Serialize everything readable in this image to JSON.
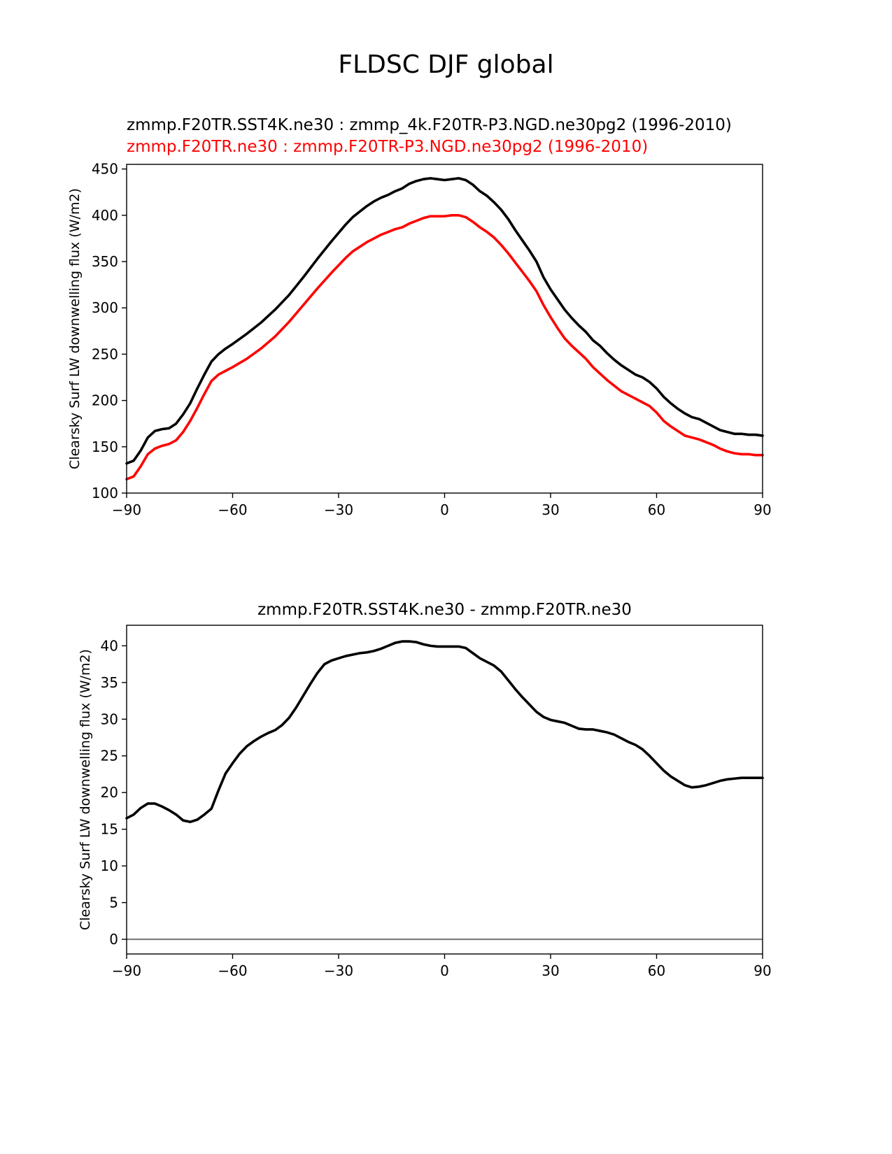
{
  "figure": {
    "title": "FLDSC DJF global"
  },
  "chart_data": [
    {
      "type": "line",
      "title_lines": [
        "zmmp.F20TR.SST4K.ne30 : zmmp_4k.F20TR-P3.NGD.ne30pg2 (1996-2010)",
        "zmmp.F20TR.ne30 : zmmp.F20TR-P3.NGD.ne30pg2 (1996-2010)"
      ],
      "title_colors": [
        "#000000",
        "#ff0000"
      ],
      "xlabel": "",
      "ylabel": "Clearsky Surf LW downwelling flux (W/m2)",
      "xlim": [
        -90,
        90
      ],
      "ylim": [
        100,
        455
      ],
      "xticks": [
        -90,
        -60,
        -30,
        0,
        30,
        60,
        90
      ],
      "xtick_labels": [
        "−90",
        "−60",
        "−30",
        "0",
        "30",
        "60",
        "90"
      ],
      "yticks": [
        100,
        150,
        200,
        250,
        300,
        350,
        400,
        450
      ],
      "ytick_labels": [
        "100",
        "150",
        "200",
        "250",
        "300",
        "350",
        "400",
        "450"
      ],
      "series": [
        {
          "name": "zmmp.F20TR.SST4K.ne30",
          "color": "#000000",
          "points": [
            [
              -90,
              132
            ],
            [
              -88,
              135
            ],
            [
              -86,
              146
            ],
            [
              -84,
              160
            ],
            [
              -82,
              167
            ],
            [
              -80,
              169
            ],
            [
              -78,
              170
            ],
            [
              -76,
              175
            ],
            [
              -74,
              185
            ],
            [
              -72,
              197
            ],
            [
              -70,
              213
            ],
            [
              -68,
              228
            ],
            [
              -66,
              242
            ],
            [
              -64,
              250
            ],
            [
              -62,
              256
            ],
            [
              -60,
              261
            ],
            [
              -56,
              272
            ],
            [
              -52,
              284
            ],
            [
              -48,
              298
            ],
            [
              -44,
              314
            ],
            [
              -40,
              333
            ],
            [
              -36,
              353
            ],
            [
              -32,
              372
            ],
            [
              -28,
              390
            ],
            [
              -26,
              398
            ],
            [
              -24,
              404
            ],
            [
              -22,
              410
            ],
            [
              -20,
              415
            ],
            [
              -18,
              419
            ],
            [
              -16,
              422
            ],
            [
              -14,
              426
            ],
            [
              -12,
              429
            ],
            [
              -10,
              434
            ],
            [
              -8,
              437
            ],
            [
              -6,
              439
            ],
            [
              -4,
              440
            ],
            [
              -2,
              439
            ],
            [
              0,
              438
            ],
            [
              2,
              439
            ],
            [
              4,
              440
            ],
            [
              6,
              438
            ],
            [
              8,
              433
            ],
            [
              10,
              426
            ],
            [
              12,
              421
            ],
            [
              14,
              414
            ],
            [
              16,
              406
            ],
            [
              18,
              396
            ],
            [
              20,
              384
            ],
            [
              22,
              373
            ],
            [
              24,
              362
            ],
            [
              26,
              350
            ],
            [
              28,
              333
            ],
            [
              30,
              320
            ],
            [
              32,
              309
            ],
            [
              34,
              298
            ],
            [
              36,
              289
            ],
            [
              38,
              281
            ],
            [
              40,
              274
            ],
            [
              42,
              265
            ],
            [
              44,
              259
            ],
            [
              46,
              251
            ],
            [
              48,
              244
            ],
            [
              50,
              238
            ],
            [
              52,
              233
            ],
            [
              54,
              228
            ],
            [
              56,
              225
            ],
            [
              58,
              220
            ],
            [
              60,
              213
            ],
            [
              62,
              204
            ],
            [
              64,
              197
            ],
            [
              66,
              191
            ],
            [
              68,
              186
            ],
            [
              70,
              182
            ],
            [
              72,
              180
            ],
            [
              74,
              176
            ],
            [
              76,
              172
            ],
            [
              78,
              168
            ],
            [
              80,
              166
            ],
            [
              82,
              164
            ],
            [
              84,
              164
            ],
            [
              86,
              163
            ],
            [
              88,
              163
            ],
            [
              90,
              162
            ]
          ]
        },
        {
          "name": "zmmp.F20TR.ne30",
          "color": "#ff0000",
          "points": [
            [
              -90,
              115
            ],
            [
              -88,
              118
            ],
            [
              -86,
              129
            ],
            [
              -84,
              142
            ],
            [
              -82,
              148
            ],
            [
              -80,
              151
            ],
            [
              -78,
              153
            ],
            [
              -76,
              157
            ],
            [
              -74,
              166
            ],
            [
              -72,
              178
            ],
            [
              -70,
              192
            ],
            [
              -68,
              207
            ],
            [
              -66,
              221
            ],
            [
              -64,
              228
            ],
            [
              -62,
              232
            ],
            [
              -60,
              236
            ],
            [
              -56,
              245
            ],
            [
              -52,
              256
            ],
            [
              -48,
              269
            ],
            [
              -44,
              285
            ],
            [
              -40,
              303
            ],
            [
              -36,
              321
            ],
            [
              -32,
              338
            ],
            [
              -28,
              354
            ],
            [
              -26,
              361
            ],
            [
              -24,
              366
            ],
            [
              -22,
              371
            ],
            [
              -20,
              375
            ],
            [
              -18,
              379
            ],
            [
              -16,
              382
            ],
            [
              -14,
              385
            ],
            [
              -12,
              387
            ],
            [
              -10,
              391
            ],
            [
              -8,
              394
            ],
            [
              -6,
              397
            ],
            [
              -4,
              399
            ],
            [
              -2,
              399
            ],
            [
              0,
              399
            ],
            [
              2,
              400
            ],
            [
              4,
              400
            ],
            [
              6,
              398
            ],
            [
              8,
              393
            ],
            [
              10,
              387
            ],
            [
              12,
              382
            ],
            [
              14,
              376
            ],
            [
              16,
              368
            ],
            [
              18,
              359
            ],
            [
              20,
              349
            ],
            [
              22,
              339
            ],
            [
              24,
              329
            ],
            [
              26,
              318
            ],
            [
              28,
              303
            ],
            [
              30,
              290
            ],
            [
              32,
              278
            ],
            [
              34,
              267
            ],
            [
              36,
              259
            ],
            [
              38,
              252
            ],
            [
              40,
              245
            ],
            [
              42,
              236
            ],
            [
              44,
              229
            ],
            [
              46,
              222
            ],
            [
              48,
              216
            ],
            [
              50,
              210
            ],
            [
              52,
              206
            ],
            [
              54,
              202
            ],
            [
              56,
              198
            ],
            [
              58,
              194
            ],
            [
              60,
              187
            ],
            [
              62,
              178
            ],
            [
              64,
              172
            ],
            [
              66,
              167
            ],
            [
              68,
              162
            ],
            [
              70,
              160
            ],
            [
              72,
              158
            ],
            [
              74,
              155
            ],
            [
              76,
              152
            ],
            [
              78,
              148
            ],
            [
              80,
              145
            ],
            [
              82,
              143
            ],
            [
              84,
              142
            ],
            [
              86,
              142
            ],
            [
              88,
              141
            ],
            [
              90,
              141
            ]
          ]
        }
      ]
    },
    {
      "type": "line",
      "title_lines": [
        "zmmp.F20TR.SST4K.ne30 - zmmp.F20TR.ne30"
      ],
      "title_colors": [
        "#000000"
      ],
      "xlabel": "",
      "ylabel": "Clearsky Surf LW downwelling flux (W/m2)",
      "xlim": [
        -90,
        90
      ],
      "ylim": [
        -2,
        42.8
      ],
      "xticks": [
        -90,
        -60,
        -30,
        0,
        30,
        60,
        90
      ],
      "xtick_labels": [
        "−90",
        "−60",
        "−30",
        "0",
        "30",
        "60",
        "90"
      ],
      "yticks": [
        0,
        5,
        10,
        15,
        20,
        25,
        30,
        35,
        40
      ],
      "ytick_labels": [
        "0",
        "5",
        "10",
        "15",
        "20",
        "25",
        "30",
        "35",
        "40"
      ],
      "hline": {
        "y": 0,
        "color": "#808080"
      },
      "series": [
        {
          "name": "zmmp.F20TR.SST4K.ne30 - zmmp.F20TR.ne30",
          "color": "#000000",
          "points": [
            [
              -90,
              16.5
            ],
            [
              -88,
              17.0
            ],
            [
              -86,
              17.9
            ],
            [
              -84,
              18.5
            ],
            [
              -82,
              18.5
            ],
            [
              -80,
              18.1
            ],
            [
              -78,
              17.6
            ],
            [
              -76,
              17.0
            ],
            [
              -74,
              16.2
            ],
            [
              -72,
              16.0
            ],
            [
              -70,
              16.3
            ],
            [
              -68,
              17.0
            ],
            [
              -66,
              17.8
            ],
            [
              -64,
              20.3
            ],
            [
              -62,
              22.6
            ],
            [
              -60,
              24.0
            ],
            [
              -58,
              25.3
            ],
            [
              -56,
              26.3
            ],
            [
              -54,
              27.0
            ],
            [
              -52,
              27.6
            ],
            [
              -50,
              28.1
            ],
            [
              -48,
              28.5
            ],
            [
              -46,
              29.2
            ],
            [
              -44,
              30.2
            ],
            [
              -42,
              31.6
            ],
            [
              -40,
              33.2
            ],
            [
              -38,
              34.8
            ],
            [
              -36,
              36.3
            ],
            [
              -34,
              37.5
            ],
            [
              -32,
              38.0
            ],
            [
              -30,
              38.3
            ],
            [
              -28,
              38.6
            ],
            [
              -26,
              38.8
            ],
            [
              -24,
              39.0
            ],
            [
              -22,
              39.1
            ],
            [
              -20,
              39.3
            ],
            [
              -18,
              39.6
            ],
            [
              -16,
              40.0
            ],
            [
              -14,
              40.4
            ],
            [
              -12,
              40.6
            ],
            [
              -10,
              40.6
            ],
            [
              -8,
              40.5
            ],
            [
              -6,
              40.2
            ],
            [
              -4,
              40.0
            ],
            [
              -2,
              39.9
            ],
            [
              0,
              39.9
            ],
            [
              2,
              39.9
            ],
            [
              4,
              39.9
            ],
            [
              6,
              39.7
            ],
            [
              8,
              39.0
            ],
            [
              10,
              38.3
            ],
            [
              12,
              37.8
            ],
            [
              14,
              37.3
            ],
            [
              16,
              36.5
            ],
            [
              18,
              35.3
            ],
            [
              20,
              34.1
            ],
            [
              22,
              33.0
            ],
            [
              24,
              32.0
            ],
            [
              26,
              31.0
            ],
            [
              28,
              30.3
            ],
            [
              30,
              29.9
            ],
            [
              32,
              29.7
            ],
            [
              34,
              29.5
            ],
            [
              36,
              29.1
            ],
            [
              38,
              28.7
            ],
            [
              40,
              28.6
            ],
            [
              42,
              28.6
            ],
            [
              44,
              28.4
            ],
            [
              46,
              28.2
            ],
            [
              48,
              27.9
            ],
            [
              50,
              27.4
            ],
            [
              52,
              26.9
            ],
            [
              54,
              26.5
            ],
            [
              56,
              25.9
            ],
            [
              58,
              25.0
            ],
            [
              60,
              24.0
            ],
            [
              62,
              23.0
            ],
            [
              64,
              22.2
            ],
            [
              66,
              21.6
            ],
            [
              68,
              21.0
            ],
            [
              70,
              20.7
            ],
            [
              72,
              20.8
            ],
            [
              74,
              21.0
            ],
            [
              76,
              21.3
            ],
            [
              78,
              21.6
            ],
            [
              80,
              21.8
            ],
            [
              82,
              21.9
            ],
            [
              84,
              22.0
            ],
            [
              86,
              22.0
            ],
            [
              88,
              22.0
            ],
            [
              90,
              22.0
            ]
          ]
        }
      ]
    }
  ]
}
